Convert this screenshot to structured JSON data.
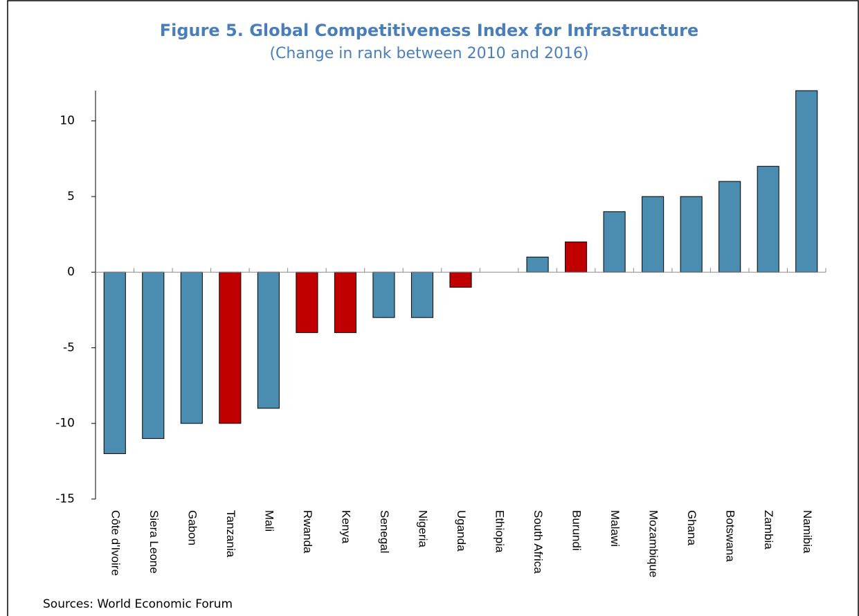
{
  "chart_data": {
    "type": "bar",
    "title": "Figure 5. Global Competitiveness Index for Infrastructure",
    "subtitle": "(Change in rank between 2010 and 2016)",
    "categories": [
      "Côte d'Ivoire",
      "Siera Leone",
      "Gabon",
      "Tanzania",
      "Mali",
      "Rwanda",
      "Kenya",
      "Senegal",
      "Nigeria",
      "Uganda",
      "Ethiopia",
      "South Africa",
      "Burundi",
      "Malawi",
      "Mozambique",
      "Ghana",
      "Botswana",
      "Zambia",
      "Namibia"
    ],
    "values": [
      -12,
      -11,
      -10,
      -10,
      -9,
      -4,
      -4,
      -3,
      -3,
      -1,
      0,
      1,
      2,
      4,
      5,
      5,
      6,
      7,
      12
    ],
    "colors": [
      "#4a8db0",
      "#4a8db0",
      "#4a8db0",
      "#c00000",
      "#4a8db0",
      "#c00000",
      "#c00000",
      "#4a8db0",
      "#4a8db0",
      "#c00000",
      "#4a8db0",
      "#4a8db0",
      "#c00000",
      "#4a8db0",
      "#4a8db0",
      "#4a8db0",
      "#4a8db0",
      "#4a8db0",
      "#4a8db0"
    ],
    "ylim": [
      -15,
      12
    ],
    "yticks": [
      -15,
      -10,
      -5,
      0,
      5,
      10
    ],
    "grid": false,
    "source": "Sources: World Economic Forum"
  }
}
